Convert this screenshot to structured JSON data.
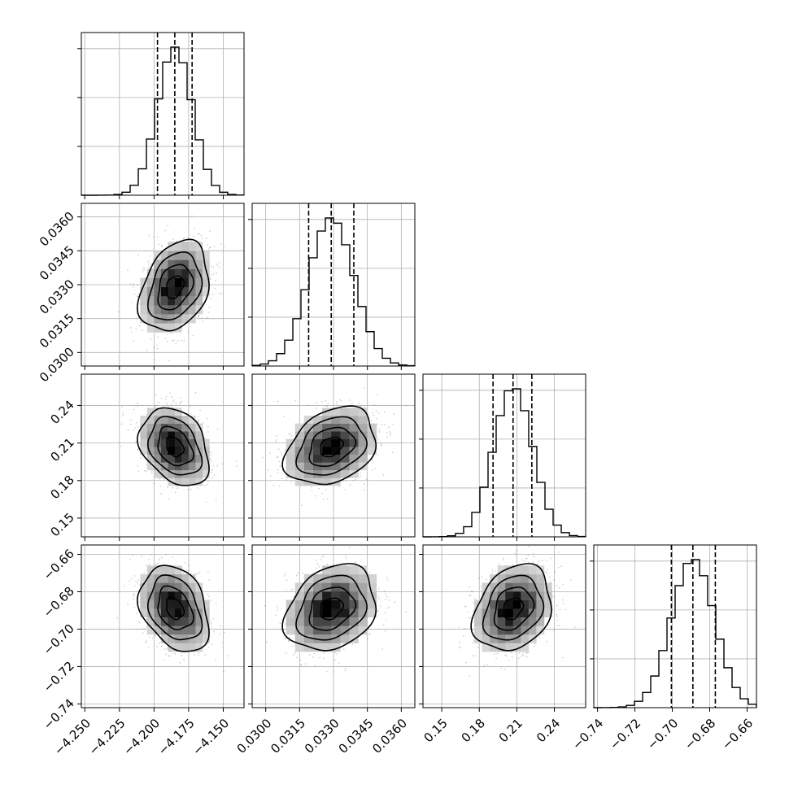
{
  "chart_data": {
    "type": "corner",
    "grid": true,
    "parameters": [
      {
        "mean": -4.185,
        "sd": 0.0125,
        "range": [
          -4.2525,
          -4.135
        ],
        "ticks": [
          "-4.250",
          "-4.225",
          "-4.200",
          "-4.175",
          "-4.150"
        ],
        "tick_values": [
          -4.25,
          -4.225,
          -4.2,
          -4.175,
          -4.15
        ],
        "quantiles": [
          -4.1975,
          -4.185,
          -4.1725
        ]
      },
      {
        "mean": 0.0329,
        "sd": 0.001,
        "range": [
          0.0294,
          0.0366
        ],
        "ticks": [
          "0.0300",
          "0.0315",
          "0.0330",
          "0.0345",
          "0.0360"
        ],
        "tick_values": [
          0.03,
          0.0315,
          0.033,
          0.0345,
          0.036
        ],
        "quantiles": [
          0.0319,
          0.0329,
          0.0339
        ]
      },
      {
        "mean": 0.207,
        "sd": 0.0155,
        "range": [
          0.135,
          0.265
        ],
        "ticks": [
          "0.15",
          "0.18",
          "0.21",
          "0.24"
        ],
        "tick_values": [
          0.15,
          0.18,
          0.21,
          0.24
        ],
        "quantiles": [
          0.191,
          0.207,
          0.222
        ]
      },
      {
        "mean": -0.689,
        "sd": 0.0115,
        "range": [
          -0.742,
          -0.655
        ],
        "ticks": [
          "-0.74",
          "-0.72",
          "-0.70",
          "-0.68",
          "-0.66"
        ],
        "tick_values": [
          -0.74,
          -0.72,
          -0.7,
          -0.68,
          -0.66
        ],
        "quantiles": [
          -0.7005,
          -0.689,
          -0.677
        ]
      }
    ],
    "correlations": [
      {
        "row": 1,
        "col": 0,
        "rho": 0.3
      },
      {
        "row": 2,
        "col": 0,
        "rho": -0.3
      },
      {
        "row": 2,
        "col": 1,
        "rho": 0.3
      },
      {
        "row": 3,
        "col": 0,
        "rho": -0.3
      },
      {
        "row": 3,
        "col": 1,
        "rho": 0.25
      },
      {
        "row": 3,
        "col": 2,
        "rho": 0.25
      }
    ]
  }
}
